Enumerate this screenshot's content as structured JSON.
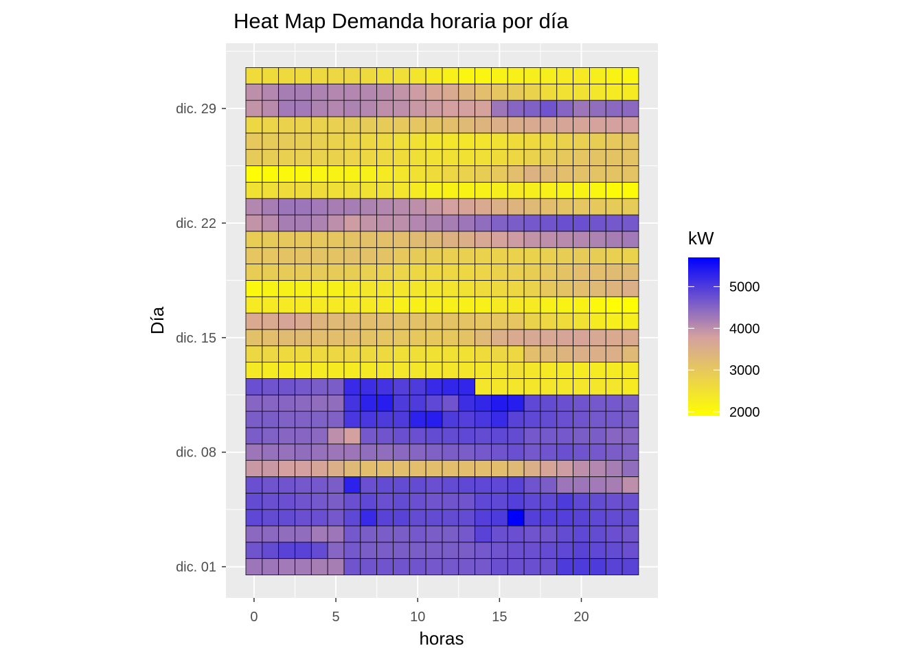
{
  "chart_data": {
    "type": "heatmap",
    "title": "Heat Map Demanda horaria por día",
    "xlabel": "horas",
    "ylabel": "Día",
    "x": [
      0,
      1,
      2,
      3,
      4,
      5,
      6,
      7,
      8,
      9,
      10,
      11,
      12,
      13,
      14,
      15,
      16,
      17,
      18,
      19,
      20,
      21,
      22,
      23
    ],
    "x_ticks": [
      0,
      5,
      10,
      15,
      20
    ],
    "x_tick_labels": [
      "0",
      "5",
      "10",
      "15",
      "20"
    ],
    "y": [
      "dic. 01",
      "dic. 02",
      "dic. 03",
      "dic. 04",
      "dic. 05",
      "dic. 06",
      "dic. 07",
      "dic. 08",
      "dic. 09",
      "dic. 10",
      "dic. 11",
      "dic. 12",
      "dic. 13",
      "dic. 14",
      "dic. 15",
      "dic. 16",
      "dic. 17",
      "dic. 18",
      "dic. 19",
      "dic. 20",
      "dic. 21",
      "dic. 22",
      "dic. 23",
      "dic. 24",
      "dic. 25",
      "dic. 26",
      "dic. 27",
      "dic. 28",
      "dic. 29",
      "dic. 30",
      "dic. 31"
    ],
    "y_ticks": [
      "dic. 01",
      "dic. 08",
      "dic. 15",
      "dic. 22",
      "dic. 29"
    ],
    "grid": true,
    "legend": {
      "title": "kW",
      "position": "right",
      "ticks": [
        2000,
        3000,
        4000,
        5000
      ],
      "low_color": "#ffff00",
      "mid_color": "#d4a0a0",
      "high_color": "#0000ff",
      "min": 1900,
      "max": 5700
    },
    "values": [
      [
        4300,
        4300,
        4250,
        4250,
        4200,
        4200,
        4700,
        4700,
        4700,
        4700,
        4700,
        4650,
        4650,
        4650,
        4650,
        4750,
        4750,
        4750,
        4750,
        5000,
        5000,
        5000,
        4900,
        4900
      ],
      [
        4700,
        4800,
        4900,
        4900,
        4800,
        4500,
        4650,
        4600,
        4600,
        4600,
        4600,
        4600,
        4600,
        4600,
        4650,
        4700,
        4750,
        4750,
        4800,
        4850,
        4900,
        4850,
        4800,
        4750
      ],
      [
        4450,
        4450,
        4400,
        4400,
        4250,
        4300,
        4650,
        4600,
        4600,
        4600,
        4650,
        4600,
        4600,
        4650,
        4900,
        4750,
        4750,
        4700,
        4700,
        4800,
        4850,
        4800,
        4750,
        4700
      ],
      [
        4850,
        4800,
        4800,
        4750,
        4750,
        4650,
        4850,
        5200,
        4900,
        4900,
        4800,
        4800,
        4800,
        4800,
        4950,
        5000,
        5700,
        4950,
        4950,
        4950,
        4900,
        4850,
        4800,
        4800
      ],
      [
        4800,
        4750,
        4750,
        4700,
        4650,
        4600,
        4750,
        4850,
        4750,
        4800,
        4750,
        4700,
        4700,
        4700,
        4850,
        4850,
        4950,
        4850,
        4850,
        5000,
        4850,
        4800,
        4750,
        4750
      ],
      [
        4750,
        4700,
        4700,
        4650,
        4650,
        4600,
        5300,
        4750,
        4800,
        4800,
        4800,
        4750,
        4800,
        4850,
        4850,
        4850,
        4900,
        4700,
        4600,
        4300,
        4300,
        4250,
        4200,
        4000
      ],
      [
        3900,
        3900,
        3800,
        3800,
        3700,
        3500,
        3300,
        3200,
        3200,
        3200,
        3200,
        3200,
        3200,
        3200,
        3200,
        3200,
        3300,
        3500,
        3700,
        3850,
        4000,
        4100,
        4200,
        4400
      ],
      [
        4300,
        4350,
        4350,
        4400,
        4350,
        4300,
        4300,
        4400,
        4400,
        4450,
        4500,
        4550,
        4600,
        4600,
        4650,
        4700,
        4750,
        4650,
        4700,
        4750,
        4700,
        4650,
        4600,
        4550
      ],
      [
        4600,
        4550,
        4500,
        4500,
        4450,
        4000,
        3800,
        4650,
        4700,
        4750,
        4750,
        4800,
        4800,
        4850,
        4800,
        4850,
        4800,
        4650,
        4650,
        4650,
        4600,
        4600,
        4500,
        4500
      ],
      [
        4600,
        4600,
        4550,
        4550,
        4550,
        4550,
        5050,
        5050,
        5000,
        5000,
        5300,
        5350,
        5000,
        4950,
        5050,
        5200,
        4900,
        4850,
        4800,
        4750,
        4700,
        4650,
        4650,
        4600
      ],
      [
        4500,
        4500,
        4500,
        4450,
        4400,
        4400,
        5100,
        5300,
        5350,
        5000,
        5000,
        4850,
        4700,
        5150,
        5250,
        5400,
        5350,
        4850,
        4800,
        4750,
        4700,
        4650,
        4650,
        4600
      ],
      [
        4750,
        4700,
        4700,
        4650,
        4600,
        4600,
        5200,
        5150,
        5100,
        4950,
        5000,
        5200,
        5250,
        5250,
        2400,
        2400,
        2400,
        2400,
        2400,
        2400,
        2400,
        2400,
        2400,
        2300
      ],
      [
        2350,
        2300,
        2300,
        2300,
        2300,
        2300,
        2300,
        2350,
        2400,
        2400,
        2400,
        2400,
        2400,
        2400,
        2400,
        2450,
        2500,
        2400,
        2350,
        2350,
        2300,
        2300,
        2300,
        2300
      ],
      [
        2700,
        2700,
        2650,
        2650,
        2650,
        2700,
        2700,
        2650,
        2650,
        2550,
        2550,
        2500,
        2500,
        2500,
        2600,
        2700,
        2700,
        3200,
        3300,
        3400,
        3500,
        3500,
        3500,
        3300
      ],
      [
        3150,
        3200,
        3250,
        3250,
        3200,
        3200,
        3200,
        3100,
        3050,
        3050,
        3000,
        3000,
        3000,
        3100,
        3300,
        3500,
        3600,
        3650,
        3650,
        3700,
        3700,
        3650,
        3600,
        3600
      ],
      [
        3600,
        3600,
        3700,
        3600,
        3400,
        3300,
        3300,
        3200,
        3200,
        3150,
        3150,
        3100,
        3100,
        3100,
        3050,
        3050,
        3050,
        2800,
        2700,
        2600,
        2500,
        2300,
        2250,
        2250
      ],
      [
        2300,
        2300,
        2300,
        2300,
        2300,
        2300,
        2300,
        2300,
        2300,
        2200,
        2200,
        2200,
        2200,
        2200,
        2200,
        2300,
        2300,
        2300,
        2200,
        2150,
        2150,
        2050,
        1950,
        1950
      ],
      [
        2050,
        2150,
        2200,
        2200,
        2200,
        2200,
        2300,
        2400,
        2400,
        2400,
        2400,
        2400,
        2450,
        2500,
        2600,
        2650,
        2700,
        2800,
        3000,
        3100,
        3200,
        3300,
        3400,
        3500
      ],
      [
        2900,
        2900,
        2950,
        2950,
        2950,
        2950,
        2900,
        2850,
        2800,
        2750,
        2700,
        2700,
        2700,
        2700,
        2750,
        2800,
        2850,
        2900,
        3000,
        3100,
        3200,
        3200,
        3250,
        3250
      ],
      [
        3050,
        3050,
        3100,
        3100,
        3100,
        3100,
        3150,
        3150,
        3100,
        3000,
        2950,
        2900,
        2850,
        2850,
        2800,
        2800,
        2800,
        2800,
        2850,
        2900,
        2950,
        2900,
        2850,
        2800
      ],
      [
        2900,
        2950,
        3000,
        3000,
        3000,
        3050,
        3100,
        3150,
        3150,
        3200,
        3250,
        3300,
        3450,
        3500,
        3650,
        3750,
        3850,
        3950,
        4000,
        4050,
        4100,
        4150,
        4200,
        4250
      ],
      [
        3950,
        4050,
        4200,
        4200,
        4150,
        4000,
        3850,
        3950,
        4000,
        4000,
        4100,
        4150,
        4200,
        4300,
        4400,
        4550,
        4600,
        4650,
        4700,
        4750,
        4750,
        4700,
        4650,
        4650
      ],
      [
        4100,
        4200,
        4300,
        4300,
        4250,
        4200,
        4200,
        4150,
        4100,
        4050,
        4000,
        3900,
        3800,
        3700,
        3600,
        3500,
        3400,
        3300,
        3200,
        3100,
        3050,
        3000,
        2950,
        2950
      ],
      [
        2500,
        2550,
        2600,
        2600,
        2600,
        2550,
        2550,
        2500,
        2500,
        2450,
        2300,
        2200,
        2150,
        2150,
        2200,
        2250,
        2300,
        2250,
        2200,
        2150,
        2150,
        2100,
        2000,
        2000
      ],
      [
        1950,
        2000,
        2050,
        2050,
        2100,
        2150,
        2150,
        2200,
        2300,
        2400,
        2500,
        2600,
        2700,
        2800,
        2900,
        3000,
        3200,
        3450,
        3300,
        3200,
        3150,
        3100,
        3100,
        3100
      ],
      [
        2950,
        2900,
        2850,
        2850,
        2800,
        2800,
        2750,
        2700,
        2650,
        2600,
        2550,
        2500,
        2500,
        2500,
        2550,
        2600,
        2700,
        2800,
        2900,
        3000,
        3050,
        3100,
        3100,
        3100
      ],
      [
        3000,
        2950,
        2950,
        2900,
        2850,
        2800,
        2750,
        2700,
        2650,
        2550,
        2500,
        2450,
        2400,
        2400,
        2450,
        2500,
        2600,
        2650,
        2700,
        2800,
        2850,
        2900,
        3000,
        3050
      ],
      [
        2700,
        2750,
        2800,
        2800,
        2800,
        2850,
        2900,
        2950,
        2950,
        3000,
        3050,
        3100,
        3200,
        3300,
        3400,
        3500,
        3550,
        3600,
        3650,
        3700,
        3700,
        3750,
        3800,
        3800
      ],
      [
        3950,
        4050,
        4250,
        4250,
        4150,
        4100,
        4150,
        4100,
        4000,
        4000,
        3900,
        3850,
        3800,
        3800,
        3750,
        4300,
        4500,
        4550,
        4700,
        4500,
        4300,
        4400,
        4450,
        4450
      ],
      [
        4000,
        4100,
        4200,
        4200,
        4150,
        4100,
        4100,
        4100,
        4050,
        3950,
        3850,
        3700,
        3600,
        3400,
        3200,
        3050,
        2950,
        2800,
        2600,
        2500,
        2500,
        2400,
        2300,
        2300
      ],
      [
        2600,
        2600,
        2650,
        2650,
        2650,
        2700,
        2700,
        2650,
        2550,
        2550,
        2450,
        2300,
        2200,
        2100,
        2100,
        2150,
        2200,
        2250,
        2250,
        2300,
        2300,
        2250,
        2150,
        2100
      ]
    ]
  }
}
